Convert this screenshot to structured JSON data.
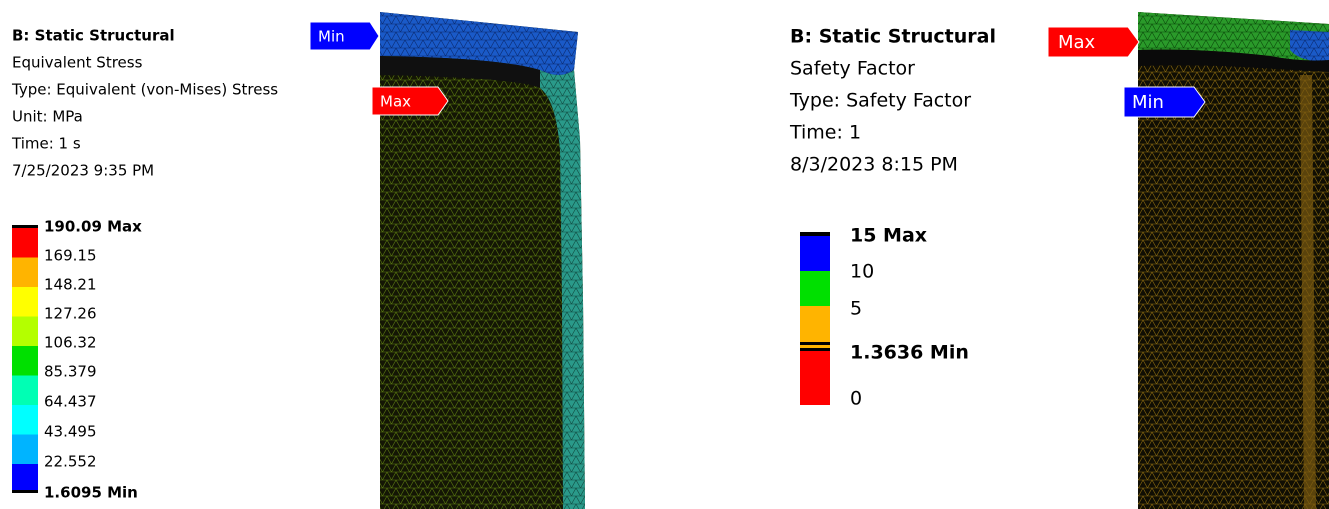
{
  "left_panel": {
    "header": [
      "B: Static Structural",
      "Equivalent Stress",
      "Type: Equivalent (von-Mises) Stress",
      "Unit: MPa",
      "Time: 1 s",
      "7/25/2023 9:35 PM"
    ],
    "legend": [
      "190.09 Max",
      "169.15",
      "148.21",
      "127.26",
      "106.32",
      "85.379",
      "64.437",
      "43.495",
      "22.552",
      "1.6095 Min"
    ],
    "tags": [
      "Min",
      "Max"
    ]
  },
  "right_panel": {
    "header": [
      "B: Static Structural",
      "Safety Factor",
      "Type: Safety Factor",
      "Time: 1",
      "8/3/2023 8:15 PM"
    ],
    "legend": [
      "15 Max",
      "10",
      "5",
      "1.3636 Min",
      "0"
    ],
    "tags": [
      "Max",
      "Min"
    ]
  }
}
